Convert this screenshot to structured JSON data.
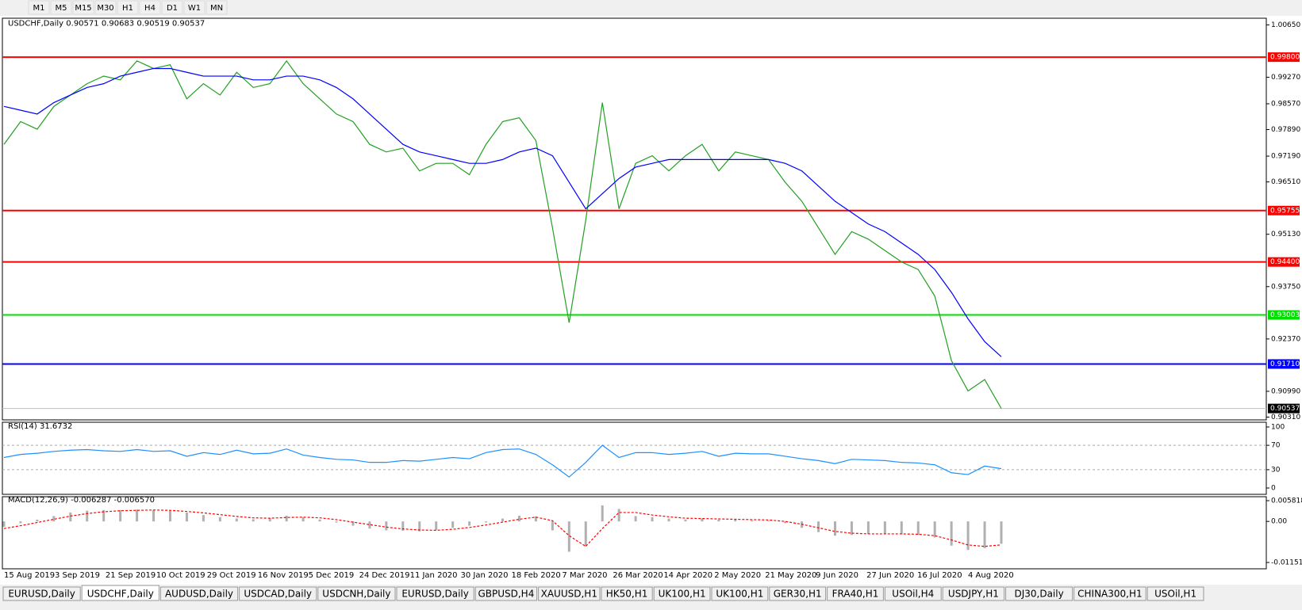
{
  "toolbar": [
    "M1",
    "M5",
    "M15",
    "M30",
    "H1",
    "H4",
    "D1",
    "W1",
    "MN"
  ],
  "tabs": [
    "EURUSD,Daily",
    "USDCHF,Daily",
    "AUDUSD,Daily",
    "USDCAD,Daily",
    "USDCNH,Daily",
    "EURUSD,Daily",
    "GBPUSD,H4",
    "XAUUSD,H1",
    "HK50,H1",
    "UK100,H1",
    "UK100,H1",
    "GER30,H1",
    "FRA40,H1",
    "USOil,H4",
    "USDJPY,H1",
    "DJ30,Daily",
    "CHINA300,H1",
    "USOil,H1"
  ],
  "active_tab": 1,
  "x_labels": [
    "15 Aug 2019",
    "3 Sep 2019",
    "21 Sep 2019",
    "10 Oct 2019",
    "29 Oct 2019",
    "16 Nov 2019",
    "5 Dec 2019",
    "24 Dec 2019",
    "11 Jan 2020",
    "30 Jan 2020",
    "18 Feb 2020",
    "7 Mar 2020",
    "26 Mar 2020",
    "14 Apr 2020",
    "2 May 2020",
    "21 May 2020",
    "9 Jun 2020",
    "27 Jun 2020",
    "16 Jul 2020",
    "4 Aug 2020"
  ],
  "chart_data": [
    {
      "type": "line",
      "title": "USDCHF,Daily  0.90571 0.90683 0.90519 0.90537",
      "ylim": [
        0.9031,
        1.0065
      ],
      "yticks": [
        {
          "value": 1.0065,
          "label": "1.00650"
        },
        {
          "value": 0.9927,
          "label": "0.99270"
        },
        {
          "value": 0.9857,
          "label": "0.98570"
        },
        {
          "value": 0.9789,
          "label": "0.97890"
        },
        {
          "value": 0.9719,
          "label": "0.97190"
        },
        {
          "value": 0.9651,
          "label": "0.96510"
        },
        {
          "value": 0.9513,
          "label": "0.95130"
        },
        {
          "value": 0.9375,
          "label": "0.93750"
        },
        {
          "value": 0.9237,
          "label": "0.92370"
        },
        {
          "value": 0.9099,
          "label": "0.90990"
        },
        {
          "value": 0.9031,
          "label": "0.90310"
        }
      ],
      "levels": [
        {
          "value": 0.998,
          "label": "0.99800",
          "color": "#ff0000"
        },
        {
          "value": 0.95755,
          "label": "0.95755",
          "color": "#ff0000"
        },
        {
          "value": 0.944,
          "label": "0.94400",
          "color": "#ff0000"
        },
        {
          "value": 0.93003,
          "label": "0.93003",
          "color": "#00e000"
        },
        {
          "value": 0.9171,
          "label": "0.91710",
          "color": "#0000ff"
        }
      ],
      "last_price": 0.90537,
      "series": [
        {
          "color": "#22a022",
          "values": [
            0.975,
            0.981,
            0.979,
            0.985,
            0.988,
            0.991,
            0.993,
            0.992,
            0.997,
            0.995,
            0.996,
            0.987,
            0.991,
            0.988,
            0.994,
            0.99,
            0.991,
            0.997,
            0.991,
            0.987,
            0.983,
            0.981,
            0.975,
            0.973,
            0.974,
            0.968,
            0.97,
            0.97,
            0.967,
            0.975,
            0.981,
            0.982,
            0.976,
            0.953,
            0.928,
            0.955,
            0.986,
            0.958,
            0.97,
            0.972,
            0.968,
            0.972,
            0.975,
            0.968,
            0.973,
            0.972,
            0.971,
            0.965,
            0.96,
            0.953,
            0.946,
            0.952,
            0.95,
            0.947,
            0.944,
            0.942,
            0.935,
            0.918,
            0.91,
            0.913,
            0.90537
          ]
        },
        {
          "color": "#0000ff",
          "values": [
            0.985,
            0.984,
            0.983,
            0.986,
            0.988,
            0.99,
            0.991,
            0.993,
            0.994,
            0.995,
            0.995,
            0.994,
            0.993,
            0.993,
            0.993,
            0.992,
            0.992,
            0.993,
            0.993,
            0.992,
            0.99,
            0.987,
            0.983,
            0.979,
            0.975,
            0.973,
            0.972,
            0.971,
            0.97,
            0.97,
            0.971,
            0.973,
            0.974,
            0.972,
            0.965,
            0.958,
            0.962,
            0.966,
            0.969,
            0.97,
            0.971,
            0.971,
            0.971,
            0.971,
            0.971,
            0.971,
            0.971,
            0.97,
            0.968,
            0.964,
            0.96,
            0.957,
            0.954,
            0.952,
            0.949,
            0.946,
            0.942,
            0.936,
            0.929,
            0.923,
            0.919
          ]
        }
      ]
    },
    {
      "type": "line",
      "title": "RSI(14) 31.6732",
      "ylim": [
        0,
        100
      ],
      "yticks": [
        0,
        30,
        70,
        100
      ],
      "series": [
        {
          "color": "#1e90ff",
          "values": [
            50,
            55,
            57,
            60,
            62,
            63,
            61,
            60,
            63,
            60,
            61,
            52,
            58,
            55,
            62,
            56,
            57,
            64,
            54,
            50,
            47,
            46,
            42,
            42,
            45,
            44,
            47,
            50,
            48,
            58,
            63,
            64,
            55,
            38,
            18,
            42,
            70,
            50,
            58,
            58,
            55,
            57,
            60,
            52,
            57,
            56,
            56,
            52,
            48,
            45,
            40,
            47,
            46,
            45,
            42,
            41,
            38,
            25,
            22,
            36,
            31.6732
          ]
        }
      ]
    },
    {
      "type": "combo",
      "title": "MACD(12,26,9) -0.006287 -0.006570",
      "ylim": [
        -0.011514,
        0.005818
      ],
      "yticks": [
        0.005818,
        {
          "value": 0,
          "label": "0.00"
        },
        -0.011514
      ],
      "series": [
        {
          "type": "bar",
          "color": "#b0b0b0",
          "values": [
            -0.0015,
            -0.0005,
            0.0005,
            0.0015,
            0.0025,
            0.003,
            0.0032,
            0.0032,
            0.0033,
            0.0032,
            0.003,
            0.0025,
            0.0018,
            0.0012,
            0.0008,
            0.0006,
            0.0009,
            0.0016,
            0.0012,
            0.0005,
            -0.0003,
            -0.0012,
            -0.002,
            -0.0025,
            -0.0026,
            -0.0028,
            -0.0024,
            -0.0018,
            -0.0012,
            -0.0003,
            0.0008,
            0.0016,
            0.0014,
            -0.0025,
            -0.0085,
            -0.007,
            0.0045,
            0.0035,
            0.0015,
            0.0012,
            0.0008,
            0.0005,
            0.0008,
            0.0005,
            0.0006,
            0.0003,
            0.0002,
            -0.0005,
            -0.0018,
            -0.003,
            -0.004,
            -0.0038,
            -0.0035,
            -0.0034,
            -0.0036,
            -0.0038,
            -0.0045,
            -0.0068,
            -0.008,
            -0.0075,
            -0.006287
          ]
        },
        {
          "type": "line",
          "dash": true,
          "color": "#ff0000",
          "values": [
            -0.002,
            -0.0012,
            -0.0003,
            0.0006,
            0.0015,
            0.0022,
            0.0027,
            0.003,
            0.0031,
            0.0032,
            0.0031,
            0.0028,
            0.0024,
            0.0019,
            0.0014,
            0.001,
            0.0009,
            0.0011,
            0.0012,
            0.001,
            0.0005,
            -0.0002,
            -0.0009,
            -0.0016,
            -0.0021,
            -0.0024,
            -0.0025,
            -0.0022,
            -0.0017,
            -0.001,
            -0.0002,
            0.0006,
            0.0012,
            0.0002,
            -0.004,
            -0.007,
            -0.002,
            0.0025,
            0.0025,
            0.0018,
            0.0013,
            0.0009,
            0.0008,
            0.0007,
            0.0006,
            0.0005,
            0.0004,
            0,
            -0.0008,
            -0.0018,
            -0.0028,
            -0.0033,
            -0.0035,
            -0.0035,
            -0.0035,
            -0.0036,
            -0.004,
            -0.0052,
            -0.0066,
            -0.007,
            -0.00657
          ]
        }
      ]
    }
  ]
}
